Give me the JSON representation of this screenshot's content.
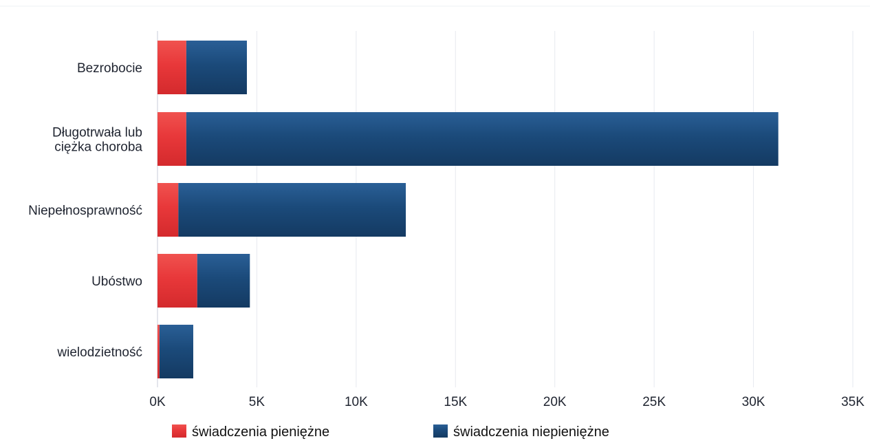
{
  "chart_data": {
    "type": "bar",
    "orientation": "horizontal",
    "stacked": true,
    "categories": [
      [
        "Bezrobocie"
      ],
      [
        "Długotrwała lub",
        "ciężka choroba"
      ],
      [
        "Niepełnosprawność"
      ],
      [
        "Ubóstwo"
      ],
      [
        "wielodzietność"
      ]
    ],
    "series": [
      {
        "name": "świadczenia pieniężne",
        "color": "#e8383a",
        "values": [
          1450,
          1450,
          1050,
          2000,
          100
        ]
      },
      {
        "name": "świadczenia niepieniężne",
        "color": "#1b4a7a",
        "values": [
          3050,
          29800,
          11450,
          2650,
          1700
        ]
      }
    ],
    "xlim": [
      0,
      35000
    ],
    "xticks": [
      0,
      5000,
      10000,
      15000,
      20000,
      25000,
      30000,
      35000
    ],
    "xtick_labels": [
      "0K",
      "5K",
      "10K",
      "15K",
      "20K",
      "25K",
      "30K",
      "35K"
    ],
    "grid": "vertical",
    "legend_position": "bottom"
  }
}
